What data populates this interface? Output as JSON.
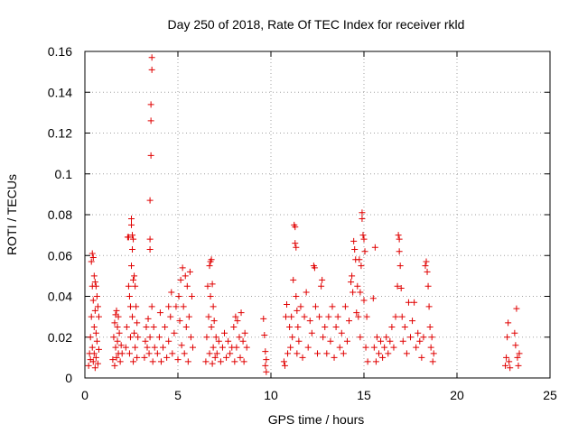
{
  "chart_data": {
    "type": "scatter",
    "title": "Day 250 of 2018, Rate Of TEC Index for receiver rkld",
    "xlabel": "GPS time / hours",
    "ylabel": "ROTI / TECUs",
    "xlim": [
      0,
      25
    ],
    "ylim": [
      0,
      0.16
    ],
    "x_ticks": [
      0,
      5,
      10,
      15,
      20,
      25
    ],
    "x_tick_labels": [
      "0",
      "5",
      "10",
      "15",
      "20",
      "25"
    ],
    "y_ticks": [
      0,
      0.02,
      0.04,
      0.06,
      0.08,
      0.1,
      0.12,
      0.14,
      0.16
    ],
    "y_tick_labels": [
      "0",
      "0.02",
      "0.04",
      "0.06",
      "0.08",
      "0.1",
      "0.12",
      "0.14",
      "0.16"
    ],
    "grid": true,
    "marker": "+",
    "color": "#e00000",
    "series": [
      {
        "points": [
          [
            0.2,
            0.006
          ],
          [
            0.25,
            0.012
          ],
          [
            0.3,
            0.02
          ],
          [
            0.3,
            0.009
          ],
          [
            0.35,
            0.057
          ],
          [
            0.35,
            0.03
          ],
          [
            0.4,
            0.061
          ],
          [
            0.4,
            0.045
          ],
          [
            0.4,
            0.015
          ],
          [
            0.45,
            0.059
          ],
          [
            0.45,
            0.038
          ],
          [
            0.45,
            0.008
          ],
          [
            0.5,
            0.05
          ],
          [
            0.5,
            0.025
          ],
          [
            0.5,
            0.012
          ],
          [
            0.55,
            0.047
          ],
          [
            0.55,
            0.033
          ],
          [
            0.55,
            0.005
          ],
          [
            0.6,
            0.045
          ],
          [
            0.6,
            0.022
          ],
          [
            0.6,
            0.01
          ],
          [
            0.65,
            0.04
          ],
          [
            0.65,
            0.018
          ],
          [
            0.7,
            0.035
          ],
          [
            0.7,
            0.007
          ],
          [
            0.75,
            0.03
          ],
          [
            0.75,
            0.014
          ],
          [
            1.5,
            0.009
          ],
          [
            1.55,
            0.02
          ],
          [
            1.6,
            0.027
          ],
          [
            1.6,
            0.006
          ],
          [
            1.65,
            0.031
          ],
          [
            1.65,
            0.015
          ],
          [
            1.7,
            0.033
          ],
          [
            1.7,
            0.01
          ],
          [
            1.75,
            0.025
          ],
          [
            1.75,
            0.018
          ],
          [
            1.8,
            0.012
          ],
          [
            1.8,
            0.03
          ],
          [
            1.85,
            0.022
          ],
          [
            1.9,
            0.008
          ],
          [
            1.95,
            0.016
          ],
          [
            2.0,
            0.012
          ],
          [
            2.2,
            0.015
          ],
          [
            2.25,
            0.025
          ],
          [
            2.3,
            0.069
          ],
          [
            2.35,
            0.069
          ],
          [
            2.35,
            0.045
          ],
          [
            2.4,
            0.04
          ],
          [
            2.4,
            0.012
          ],
          [
            2.45,
            0.035
          ],
          [
            2.45,
            0.02
          ],
          [
            2.5,
            0.078
          ],
          [
            2.5,
            0.075
          ],
          [
            2.5,
            0.055
          ],
          [
            2.55,
            0.07
          ],
          [
            2.55,
            0.063
          ],
          [
            2.55,
            0.03
          ],
          [
            2.6,
            0.068
          ],
          [
            2.6,
            0.048
          ],
          [
            2.6,
            0.008
          ],
          [
            2.65,
            0.05
          ],
          [
            2.65,
            0.022
          ],
          [
            2.7,
            0.045
          ],
          [
            2.7,
            0.015
          ],
          [
            2.75,
            0.035
          ],
          [
            2.8,
            0.027
          ],
          [
            2.8,
            0.01
          ],
          [
            2.85,
            0.02
          ],
          [
            3.2,
            0.01
          ],
          [
            3.25,
            0.018
          ],
          [
            3.3,
            0.025
          ],
          [
            3.35,
            0.015
          ],
          [
            3.4,
            0.029
          ],
          [
            3.45,
            0.012
          ],
          [
            3.5,
            0.087
          ],
          [
            3.5,
            0.068
          ],
          [
            3.5,
            0.063
          ],
          [
            3.5,
            0.02
          ],
          [
            3.55,
            0.109
          ],
          [
            3.55,
            0.126
          ],
          [
            3.55,
            0.134
          ],
          [
            3.6,
            0.151
          ],
          [
            3.6,
            0.157
          ],
          [
            3.6,
            0.035
          ],
          [
            3.65,
            0.008
          ],
          [
            3.7,
            0.025
          ],
          [
            3.75,
            0.015
          ],
          [
            3.9,
            0.012
          ],
          [
            4.0,
            0.02
          ],
          [
            4.05,
            0.032
          ],
          [
            4.1,
            0.008
          ],
          [
            4.2,
            0.015
          ],
          [
            4.3,
            0.025
          ],
          [
            4.4,
            0.01
          ],
          [
            4.5,
            0.035
          ],
          [
            4.5,
            0.018
          ],
          [
            4.6,
            0.03
          ],
          [
            4.65,
            0.042
          ],
          [
            4.7,
            0.012
          ],
          [
            4.8,
            0.022
          ],
          [
            4.9,
            0.035
          ],
          [
            5.0,
            0.009
          ],
          [
            5.05,
            0.04
          ],
          [
            5.1,
            0.028
          ],
          [
            5.15,
            0.048
          ],
          [
            5.2,
            0.016
          ],
          [
            5.25,
            0.054
          ],
          [
            5.3,
            0.035
          ],
          [
            5.35,
            0.012
          ],
          [
            5.4,
            0.05
          ],
          [
            5.45,
            0.025
          ],
          [
            5.5,
            0.045
          ],
          [
            5.55,
            0.008
          ],
          [
            5.6,
            0.03
          ],
          [
            5.65,
            0.052
          ],
          [
            5.7,
            0.02
          ],
          [
            5.75,
            0.04
          ],
          [
            5.8,
            0.015
          ],
          [
            6.5,
            0.008
          ],
          [
            6.55,
            0.02
          ],
          [
            6.6,
            0.045
          ],
          [
            6.65,
            0.03
          ],
          [
            6.7,
            0.055
          ],
          [
            6.7,
            0.012
          ],
          [
            6.75,
            0.057
          ],
          [
            6.75,
            0.04
          ],
          [
            6.8,
            0.058
          ],
          [
            6.8,
            0.025
          ],
          [
            6.85,
            0.046
          ],
          [
            6.85,
            0.007
          ],
          [
            6.9,
            0.035
          ],
          [
            6.9,
            0.015
          ],
          [
            6.95,
            0.028
          ],
          [
            7.0,
            0.01
          ],
          [
            7.05,
            0.02
          ],
          [
            7.1,
            0.012
          ],
          [
            7.2,
            0.018
          ],
          [
            7.3,
            0.008
          ],
          [
            7.4,
            0.015
          ],
          [
            7.5,
            0.022
          ],
          [
            7.6,
            0.01
          ],
          [
            7.7,
            0.018
          ],
          [
            7.8,
            0.012
          ],
          [
            7.9,
            0.015
          ],
          [
            8.0,
            0.025
          ],
          [
            8.05,
            0.008
          ],
          [
            8.1,
            0.03
          ],
          [
            8.15,
            0.015
          ],
          [
            8.2,
            0.028
          ],
          [
            8.3,
            0.02
          ],
          [
            8.35,
            0.01
          ],
          [
            8.4,
            0.032
          ],
          [
            8.5,
            0.018
          ],
          [
            8.55,
            0.008
          ],
          [
            8.6,
            0.022
          ],
          [
            8.7,
            0.015
          ],
          [
            9.6,
            0.029
          ],
          [
            9.65,
            0.021
          ],
          [
            9.7,
            0.013
          ],
          [
            9.7,
            0.006
          ],
          [
            9.75,
            0.009
          ],
          [
            9.75,
            0.003
          ],
          [
            10.7,
            0.008
          ],
          [
            10.75,
            0.006
          ],
          [
            10.8,
            0.03
          ],
          [
            10.85,
            0.036
          ],
          [
            10.9,
            0.012
          ],
          [
            11.0,
            0.025
          ],
          [
            11.05,
            0.015
          ],
          [
            11.1,
            0.03
          ],
          [
            11.15,
            0.02
          ],
          [
            11.2,
            0.048
          ],
          [
            11.25,
            0.075
          ],
          [
            11.3,
            0.074
          ],
          [
            11.3,
            0.066
          ],
          [
            11.35,
            0.064
          ],
          [
            11.35,
            0.04
          ],
          [
            11.4,
            0.033
          ],
          [
            11.4,
            0.012
          ],
          [
            11.45,
            0.025
          ],
          [
            11.5,
            0.018
          ],
          [
            11.6,
            0.035
          ],
          [
            11.7,
            0.01
          ],
          [
            11.8,
            0.03
          ],
          [
            11.9,
            0.042
          ],
          [
            12.0,
            0.015
          ],
          [
            12.1,
            0.028
          ],
          [
            12.2,
            0.022
          ],
          [
            12.3,
            0.055
          ],
          [
            12.35,
            0.054
          ],
          [
            12.4,
            0.035
          ],
          [
            12.5,
            0.012
          ],
          [
            12.6,
            0.03
          ],
          [
            12.7,
            0.045
          ],
          [
            12.75,
            0.048
          ],
          [
            12.8,
            0.02
          ],
          [
            12.9,
            0.025
          ],
          [
            13.0,
            0.012
          ],
          [
            13.1,
            0.03
          ],
          [
            13.2,
            0.018
          ],
          [
            13.3,
            0.035
          ],
          [
            13.4,
            0.01
          ],
          [
            13.5,
            0.025
          ],
          [
            13.6,
            0.03
          ],
          [
            13.7,
            0.015
          ],
          [
            13.8,
            0.022
          ],
          [
            13.9,
            0.012
          ],
          [
            14.0,
            0.035
          ],
          [
            14.1,
            0.018
          ],
          [
            14.2,
            0.028
          ],
          [
            14.3,
            0.047
          ],
          [
            14.35,
            0.05
          ],
          [
            14.4,
            0.042
          ],
          [
            14.45,
            0.067
          ],
          [
            14.5,
            0.063
          ],
          [
            14.55,
            0.058
          ],
          [
            14.6,
            0.032
          ],
          [
            14.65,
            0.045
          ],
          [
            14.7,
            0.03
          ],
          [
            14.75,
            0.058
          ],
          [
            14.8,
            0.042
          ],
          [
            14.8,
            0.02
          ],
          [
            14.85,
            0.055
          ],
          [
            14.9,
            0.081
          ],
          [
            14.9,
            0.078
          ],
          [
            14.95,
            0.07
          ],
          [
            15.0,
            0.068
          ],
          [
            15.0,
            0.038
          ],
          [
            15.05,
            0.062
          ],
          [
            15.1,
            0.015
          ],
          [
            15.15,
            0.03
          ],
          [
            15.2,
            0.008
          ],
          [
            15.5,
            0.039
          ],
          [
            15.55,
            0.015
          ],
          [
            15.6,
            0.064
          ],
          [
            15.65,
            0.008
          ],
          [
            15.7,
            0.02
          ],
          [
            15.8,
            0.012
          ],
          [
            15.9,
            0.018
          ],
          [
            16.0,
            0.01
          ],
          [
            16.1,
            0.015
          ],
          [
            16.2,
            0.02
          ],
          [
            16.3,
            0.012
          ],
          [
            16.4,
            0.018
          ],
          [
            16.5,
            0.025
          ],
          [
            16.6,
            0.015
          ],
          [
            16.7,
            0.03
          ],
          [
            16.8,
            0.045
          ],
          [
            16.85,
            0.07
          ],
          [
            16.9,
            0.068
          ],
          [
            16.9,
            0.062
          ],
          [
            16.95,
            0.055
          ],
          [
            17.0,
            0.044
          ],
          [
            17.05,
            0.03
          ],
          [
            17.1,
            0.018
          ],
          [
            17.2,
            0.025
          ],
          [
            17.3,
            0.012
          ],
          [
            17.4,
            0.037
          ],
          [
            17.5,
            0.02
          ],
          [
            17.6,
            0.028
          ],
          [
            17.7,
            0.037
          ],
          [
            17.8,
            0.015
          ],
          [
            17.9,
            0.022
          ],
          [
            18.0,
            0.018
          ],
          [
            18.1,
            0.01
          ],
          [
            18.2,
            0.02
          ],
          [
            18.3,
            0.055
          ],
          [
            18.35,
            0.057
          ],
          [
            18.4,
            0.052
          ],
          [
            18.45,
            0.045
          ],
          [
            18.5,
            0.035
          ],
          [
            18.55,
            0.025
          ],
          [
            18.6,
            0.015
          ],
          [
            18.65,
            0.02
          ],
          [
            18.7,
            0.008
          ],
          [
            18.75,
            0.012
          ],
          [
            22.6,
            0.006
          ],
          [
            22.65,
            0.01
          ],
          [
            22.7,
            0.02
          ],
          [
            22.75,
            0.027
          ],
          [
            22.8,
            0.008
          ],
          [
            22.85,
            0.005
          ],
          [
            23.1,
            0.022
          ],
          [
            23.15,
            0.016
          ],
          [
            23.2,
            0.034
          ],
          [
            23.25,
            0.01
          ],
          [
            23.3,
            0.006
          ],
          [
            23.35,
            0.012
          ]
        ]
      }
    ]
  }
}
